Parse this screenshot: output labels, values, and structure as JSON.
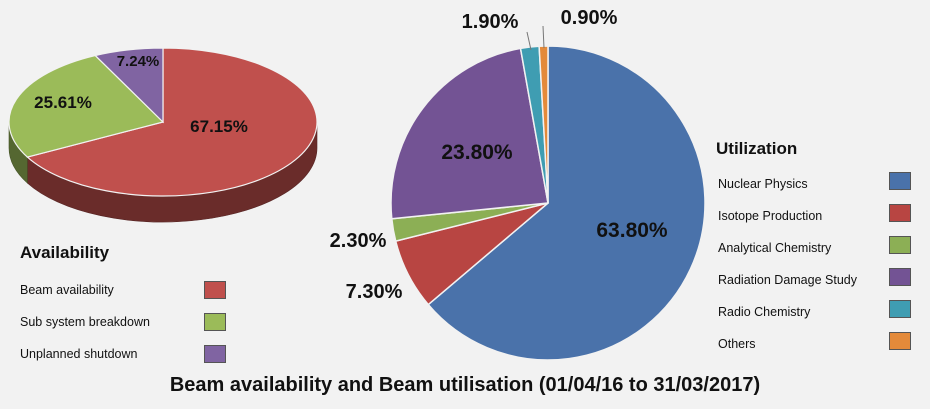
{
  "chart_data": [
    {
      "type": "pie",
      "style": "3d",
      "legend_title": "Availability",
      "categories": [
        "Beam availability",
        "Sub system breakdown",
        "Unplanned shutdown"
      ],
      "values": [
        67.15,
        25.61,
        7.24
      ],
      "labels": [
        "67.15%",
        "25.61%",
        "7.24%"
      ],
      "colors": [
        "#c0504d",
        "#9bbb59",
        "#8064a2"
      ],
      "legend_placement": "bottom-left"
    },
    {
      "type": "pie",
      "legend_title": "Utilization",
      "categories": [
        "Nuclear Physics",
        "Isotope Production",
        "Analytical Chemistry",
        "Radiation Damage Study",
        "Radio Chemistry",
        "Others"
      ],
      "values": [
        63.8,
        7.3,
        2.3,
        23.8,
        1.9,
        0.9
      ],
      "labels": [
        "63.80%",
        "7.30%",
        "2.30%",
        "23.80%",
        "1.90%",
        "0.90%"
      ],
      "colors": [
        "#4a72aa",
        "#b84542",
        "#8caf55",
        "#735394",
        "#3f9db2",
        "#e48a3a"
      ],
      "legend_placement": "right"
    }
  ],
  "footer_title": "Beam availability and Beam utilisation (01/04/16 to 31/03/2017)"
}
